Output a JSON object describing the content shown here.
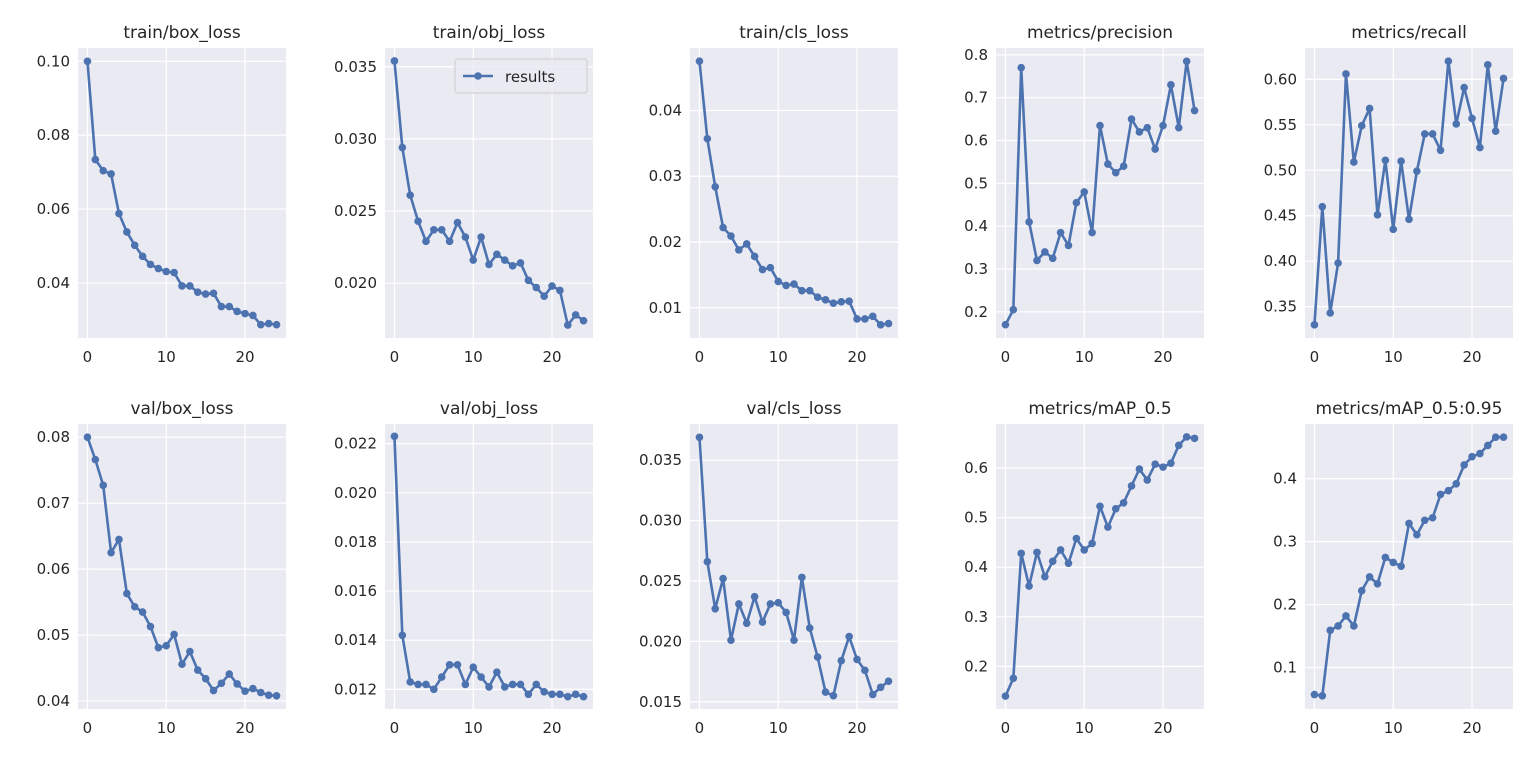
{
  "chart_data": [
    {
      "type": "line",
      "title": "train/box_loss",
      "xlim": [
        -1.2,
        25.2
      ],
      "ylim": [
        0.0251,
        0.1036
      ],
      "xticks": [
        0,
        10,
        20
      ],
      "yticks": [
        0.04,
        0.06,
        0.08,
        0.1
      ],
      "ytick_labels": [
        "0.04",
        "0.06",
        "0.08",
        "0.10"
      ],
      "grid": true,
      "series": [
        {
          "name": "results",
          "values": [
            0.1,
            0.0734,
            0.0704,
            0.0695,
            0.0588,
            0.0538,
            0.0502,
            0.0472,
            0.045,
            0.0439,
            0.0431,
            0.0428,
            0.0392,
            0.0392,
            0.0375,
            0.037,
            0.0372,
            0.0336,
            0.0336,
            0.0323,
            0.0317,
            0.0312,
            0.0287,
            0.029,
            0.0287
          ]
        }
      ]
    },
    {
      "type": "line",
      "title": "train/obj_loss",
      "xlim": [
        -1.2,
        25.2
      ],
      "ylim": [
        0.0162,
        0.0363
      ],
      "xticks": [
        0,
        10,
        20
      ],
      "yticks": [
        0.02,
        0.025,
        0.03,
        0.035
      ],
      "ytick_labels": [
        "0.020",
        "0.025",
        "0.030",
        "0.035"
      ],
      "grid": true,
      "legend": "top-right",
      "series": [
        {
          "name": "results",
          "values": [
            0.0354,
            0.0294,
            0.0261,
            0.0243,
            0.0229,
            0.0237,
            0.0237,
            0.0229,
            0.0242,
            0.0232,
            0.0216,
            0.0232,
            0.0213,
            0.022,
            0.0216,
            0.0212,
            0.0214,
            0.0202,
            0.0197,
            0.0191,
            0.0198,
            0.0195,
            0.0171,
            0.0178,
            0.0174
          ]
        }
      ]
    },
    {
      "type": "line",
      "title": "train/cls_loss",
      "xlim": [
        -1.2,
        25.2
      ],
      "ylim": [
        0.0054,
        0.0495
      ],
      "xticks": [
        0,
        10,
        20
      ],
      "yticks": [
        0.01,
        0.02,
        0.03,
        0.04
      ],
      "ytick_labels": [
        "0.01",
        "0.02",
        "0.03",
        "0.04"
      ],
      "grid": true,
      "series": [
        {
          "name": "results",
          "values": [
            0.0475,
            0.0357,
            0.0284,
            0.0222,
            0.0209,
            0.0188,
            0.0197,
            0.0178,
            0.0158,
            0.0161,
            0.014,
            0.0134,
            0.0136,
            0.0126,
            0.0126,
            0.0116,
            0.0112,
            0.0107,
            0.0109,
            0.011,
            0.0083,
            0.0083,
            0.0087,
            0.0074,
            0.0076
          ]
        }
      ]
    },
    {
      "type": "line",
      "title": "metrics/precision",
      "xlim": [
        -1.2,
        25.2
      ],
      "ylim": [
        0.139,
        0.816
      ],
      "xticks": [
        0,
        10,
        20
      ],
      "yticks": [
        0.2,
        0.3,
        0.4,
        0.5,
        0.6,
        0.7,
        0.8
      ],
      "ytick_labels": [
        "0.2",
        "0.3",
        "0.4",
        "0.5",
        "0.6",
        "0.7",
        "0.8"
      ],
      "grid": true,
      "series": [
        {
          "name": "results",
          "values": [
            0.17,
            0.205,
            0.77,
            0.41,
            0.32,
            0.34,
            0.325,
            0.385,
            0.355,
            0.455,
            0.48,
            0.385,
            0.635,
            0.545,
            0.525,
            0.54,
            0.65,
            0.62,
            0.63,
            0.58,
            0.635,
            0.73,
            0.63,
            0.785,
            0.67
          ]
        }
      ]
    },
    {
      "type": "line",
      "title": "metrics/recall",
      "xlim": [
        -1.2,
        25.2
      ],
      "ylim": [
        0.3155,
        0.6345
      ],
      "xticks": [
        0,
        10,
        20
      ],
      "yticks": [
        0.35,
        0.4,
        0.45,
        0.5,
        0.55,
        0.6
      ],
      "ytick_labels": [
        "0.35",
        "0.40",
        "0.45",
        "0.50",
        "0.55",
        "0.60"
      ],
      "grid": true,
      "series": [
        {
          "name": "results",
          "values": [
            0.33,
            0.46,
            0.343,
            0.398,
            0.606,
            0.509,
            0.549,
            0.568,
            0.451,
            0.511,
            0.435,
            0.51,
            0.446,
            0.499,
            0.54,
            0.54,
            0.522,
            0.62,
            0.551,
            0.591,
            0.557,
            0.525,
            0.616,
            0.543,
            0.601
          ]
        }
      ]
    },
    {
      "type": "line",
      "title": "val/box_loss",
      "xlim": [
        -1.2,
        25.2
      ],
      "ylim": [
        0.0388,
        0.082
      ],
      "xticks": [
        0,
        10,
        20
      ],
      "yticks": [
        0.04,
        0.05,
        0.06,
        0.07,
        0.08
      ],
      "ytick_labels": [
        "0.04",
        "0.05",
        "0.06",
        "0.07",
        "0.08"
      ],
      "grid": true,
      "series": [
        {
          "name": "results",
          "values": [
            0.08,
            0.0766,
            0.0727,
            0.0625,
            0.0645,
            0.0563,
            0.0543,
            0.0535,
            0.0513,
            0.0481,
            0.0484,
            0.0501,
            0.0456,
            0.0475,
            0.0447,
            0.0434,
            0.0416,
            0.0427,
            0.0441,
            0.0426,
            0.0415,
            0.0419,
            0.0413,
            0.0409,
            0.0408
          ]
        }
      ]
    },
    {
      "type": "line",
      "title": "val/obj_loss",
      "xlim": [
        -1.2,
        25.2
      ],
      "ylim": [
        0.0112,
        0.0228
      ],
      "xticks": [
        0,
        10,
        20
      ],
      "yticks": [
        0.012,
        0.014,
        0.016,
        0.018,
        0.02,
        0.022
      ],
      "ytick_labels": [
        "0.012",
        "0.014",
        "0.016",
        "0.018",
        "0.020",
        "0.022"
      ],
      "grid": true,
      "series": [
        {
          "name": "results",
          "values": [
            0.0223,
            0.0142,
            0.0123,
            0.0122,
            0.0122,
            0.012,
            0.0125,
            0.013,
            0.013,
            0.0122,
            0.0129,
            0.0125,
            0.0121,
            0.0127,
            0.0121,
            0.0122,
            0.0122,
            0.0118,
            0.0122,
            0.0119,
            0.0118,
            0.0118,
            0.0117,
            0.0118,
            0.0117
          ]
        }
      ]
    },
    {
      "type": "line",
      "title": "val/cls_loss",
      "xlim": [
        -1.2,
        25.2
      ],
      "ylim": [
        0.0144,
        0.038
      ],
      "xticks": [
        0,
        10,
        20
      ],
      "yticks": [
        0.015,
        0.02,
        0.025,
        0.03,
        0.035
      ],
      "ytick_labels": [
        "0.015",
        "0.020",
        "0.025",
        "0.030",
        "0.035"
      ],
      "grid": true,
      "series": [
        {
          "name": "results",
          "values": [
            0.0369,
            0.0266,
            0.0227,
            0.0252,
            0.0201,
            0.0231,
            0.0215,
            0.0237,
            0.0216,
            0.0231,
            0.0232,
            0.0224,
            0.0201,
            0.0253,
            0.0211,
            0.0187,
            0.0158,
            0.0155,
            0.0184,
            0.0204,
            0.0185,
            0.0176,
            0.0156,
            0.0162,
            0.0167
          ]
        }
      ]
    },
    {
      "type": "line",
      "title": "metrics/mAP_0.5",
      "xlim": [
        -1.2,
        25.2
      ],
      "ylim": [
        0.114,
        0.689
      ],
      "xticks": [
        0,
        10,
        20
      ],
      "yticks": [
        0.2,
        0.3,
        0.4,
        0.5,
        0.6
      ],
      "ytick_labels": [
        "0.2",
        "0.3",
        "0.4",
        "0.5",
        "0.6"
      ],
      "grid": true,
      "series": [
        {
          "name": "results",
          "values": [
            0.14,
            0.176,
            0.428,
            0.362,
            0.43,
            0.381,
            0.412,
            0.435,
            0.408,
            0.458,
            0.435,
            0.448,
            0.523,
            0.481,
            0.518,
            0.53,
            0.564,
            0.598,
            0.576,
            0.608,
            0.602,
            0.61,
            0.646,
            0.663,
            0.66
          ]
        }
      ]
    },
    {
      "type": "line",
      "title": "metrics/mAP_0.5:0.95",
      "xlim": [
        -1.2,
        25.2
      ],
      "ylim": [
        0.034,
        0.487
      ],
      "xticks": [
        0,
        10,
        20
      ],
      "yticks": [
        0.1,
        0.2,
        0.3,
        0.4
      ],
      "ytick_labels": [
        "0.1",
        "0.2",
        "0.3",
        "0.4"
      ],
      "grid": true,
      "series": [
        {
          "name": "results",
          "values": [
            0.057,
            0.055,
            0.159,
            0.166,
            0.182,
            0.166,
            0.222,
            0.244,
            0.233,
            0.275,
            0.267,
            0.261,
            0.329,
            0.311,
            0.334,
            0.338,
            0.375,
            0.381,
            0.392,
            0.422,
            0.435,
            0.44,
            0.453,
            0.466,
            0.466
          ]
        }
      ]
    }
  ],
  "colors": {
    "line": "#4c72b0",
    "plot_bg": "#eaeaf2",
    "grid": "#ffffff",
    "text": "#262626"
  }
}
